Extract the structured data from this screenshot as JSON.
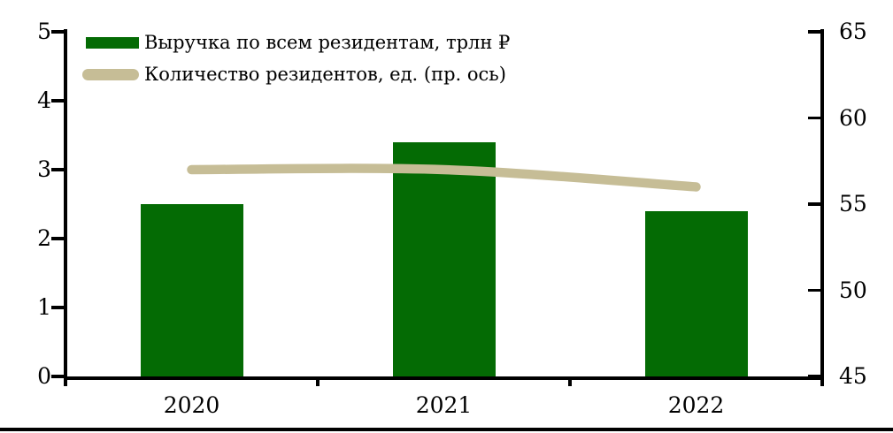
{
  "chart_data": {
    "type": "bar",
    "subtype": "bar-and-line-combo",
    "title": "",
    "categories": [
      "2020",
      "2021",
      "2022"
    ],
    "series": [
      {
        "name": "Выручка по всем резидентам, трлн ₽",
        "type": "bar",
        "axis": "left",
        "values": [
          2.5,
          3.4,
          2.4
        ],
        "color": "#046B04"
      },
      {
        "name": "Количество резидентов, ед. (пр. ось)",
        "type": "line",
        "axis": "right",
        "values": [
          57,
          57,
          56
        ],
        "color": "#C6BD96"
      }
    ],
    "left_axis": {
      "min": 0,
      "max": 5,
      "ticks": [
        0,
        1,
        2,
        3,
        4,
        5
      ]
    },
    "right_axis": {
      "min": 45,
      "max": 65,
      "ticks": [
        45,
        50,
        55,
        60,
        65
      ]
    },
    "grid": false,
    "legend_position": "top-left",
    "axis_color": "#000000",
    "background_color": "#FFFFFF"
  }
}
